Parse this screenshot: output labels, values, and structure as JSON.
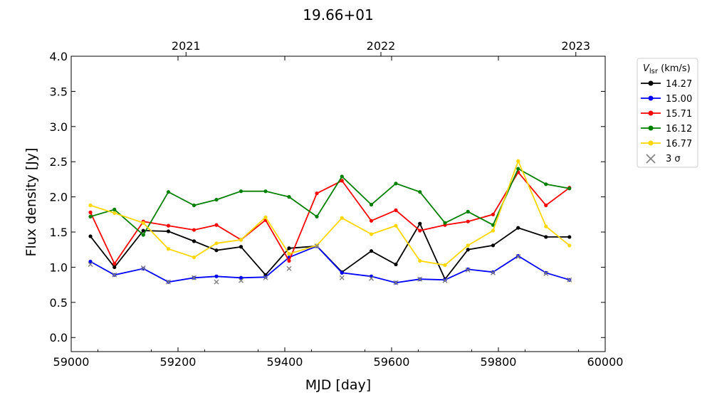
{
  "chart_data": {
    "type": "line",
    "title": "19.66+01",
    "xlabel": "MJD [day]",
    "ylabel": "Flux density [Jy]",
    "xlim": [
      59000,
      60000
    ],
    "ylim": [
      -0.2,
      4.0
    ],
    "x_ticks": [
      "59000",
      "59200",
      "59400",
      "59600",
      "59800",
      "60000"
    ],
    "y_ticks": [
      "0.0",
      "0.5",
      "1.0",
      "1.5",
      "2.0",
      "2.5",
      "3.0",
      "3.5",
      "4.0"
    ],
    "top_axis_ticks": [
      {
        "label": "2021",
        "mjd": 59215
      },
      {
        "label": "2022",
        "mjd": 59580
      },
      {
        "label": "2023",
        "mjd": 59945
      }
    ],
    "legend": {
      "title_main": "V",
      "title_sub": "lsr",
      "title_unit": " (km/s)",
      "position": "outside-right"
    },
    "x": [
      59036,
      59081,
      59135,
      59182,
      59230,
      59272,
      59318,
      59364,
      59408,
      59460,
      59507,
      59562,
      59608,
      59653,
      59700,
      59743,
      59790,
      59837,
      59889,
      59933
    ],
    "series": [
      {
        "name": "14.27",
        "color": "#000000",
        "values": [
          1.44,
          1.0,
          1.52,
          1.51,
          1.37,
          1.24,
          1.29,
          0.89,
          1.27,
          1.3,
          0.93,
          1.23,
          1.04,
          1.62,
          0.83,
          1.25,
          1.31,
          1.56,
          1.43,
          1.43
        ]
      },
      {
        "name": "15.00",
        "color": "#0000ff",
        "values": [
          1.08,
          0.89,
          0.98,
          0.79,
          0.85,
          0.87,
          0.85,
          0.86,
          1.14,
          1.3,
          0.92,
          0.87,
          0.78,
          0.83,
          0.82,
          0.97,
          0.93,
          1.16,
          0.92,
          0.82
        ]
      },
      {
        "name": "15.71",
        "color": "#ff0000",
        "values": [
          1.78,
          1.05,
          1.65,
          1.59,
          1.53,
          1.6,
          1.39,
          1.67,
          1.09,
          2.05,
          2.23,
          1.66,
          1.81,
          1.52,
          1.6,
          1.65,
          1.75,
          2.35,
          1.88,
          2.13
        ]
      },
      {
        "name": "16.12",
        "color": "#008000",
        "values": [
          1.72,
          1.82,
          1.46,
          2.07,
          1.88,
          1.96,
          2.08,
          2.08,
          2.0,
          1.72,
          2.29,
          1.89,
          2.19,
          2.07,
          1.63,
          1.79,
          1.6,
          2.4,
          2.18,
          2.12
        ]
      },
      {
        "name": "16.77",
        "color": "#ffd700",
        "values": [
          1.88,
          1.77,
          1.63,
          1.26,
          1.14,
          1.34,
          1.39,
          1.71,
          1.19,
          1.31,
          1.7,
          1.47,
          1.59,
          1.09,
          1.03,
          1.31,
          1.52,
          2.51,
          1.58,
          1.31
        ]
      }
    ],
    "sigma_markers": {
      "name": "3 σ",
      "color": "#808080",
      "points": [
        {
          "x": 59036,
          "y": 1.04
        },
        {
          "x": 59081,
          "y": 0.89
        },
        {
          "x": 59135,
          "y": 0.99
        },
        {
          "x": 59182,
          "y": 0.79
        },
        {
          "x": 59230,
          "y": 0.85
        },
        {
          "x": 59272,
          "y": 0.79
        },
        {
          "x": 59318,
          "y": 0.81
        },
        {
          "x": 59364,
          "y": 0.85
        },
        {
          "x": 59408,
          "y": 0.98
        },
        {
          "x": 59460,
          "y": 1.3
        },
        {
          "x": 59507,
          "y": 0.85
        },
        {
          "x": 59562,
          "y": 0.84
        },
        {
          "x": 59608,
          "y": 0.78
        },
        {
          "x": 59653,
          "y": 0.83
        },
        {
          "x": 59700,
          "y": 0.81
        },
        {
          "x": 59743,
          "y": 0.96
        },
        {
          "x": 59790,
          "y": 0.92
        },
        {
          "x": 59837,
          "y": 1.15
        },
        {
          "x": 59889,
          "y": 0.91
        },
        {
          "x": 59933,
          "y": 0.82
        }
      ]
    }
  }
}
